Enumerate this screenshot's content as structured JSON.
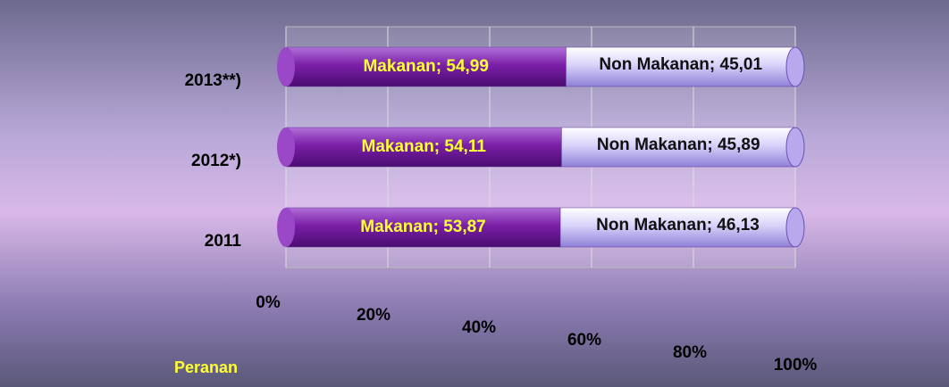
{
  "chart_data": {
    "type": "bar",
    "orientation": "horizontal",
    "stacked": true,
    "annotation": "Peranan",
    "categories": [
      "2011",
      "2012*)",
      "2013**)"
    ],
    "series": [
      {
        "name": "Makanan",
        "color": "#7b1fa8",
        "values": [
          53.87,
          54.11,
          54.99
        ],
        "value_labels": [
          "Makanan; 53,87",
          "Makanan; 54,11",
          "Makanan; 54,99"
        ]
      },
      {
        "name": "Non Makanan",
        "color": "#d9d2fa",
        "values": [
          46.13,
          45.89,
          45.01
        ],
        "value_labels": [
          "Non Makanan; 46,13",
          "Non Makanan; 45,89",
          "Non Makanan; 45,01"
        ]
      }
    ],
    "xlim": [
      0,
      100
    ],
    "xticks": [
      {
        "value": 0,
        "label": "0%"
      },
      {
        "value": 20,
        "label": "20%"
      },
      {
        "value": 40,
        "label": "40%"
      },
      {
        "value": 60,
        "label": "60%"
      },
      {
        "value": 80,
        "label": "80%"
      },
      {
        "value": 100,
        "label": "100%"
      }
    ],
    "grid": true
  }
}
